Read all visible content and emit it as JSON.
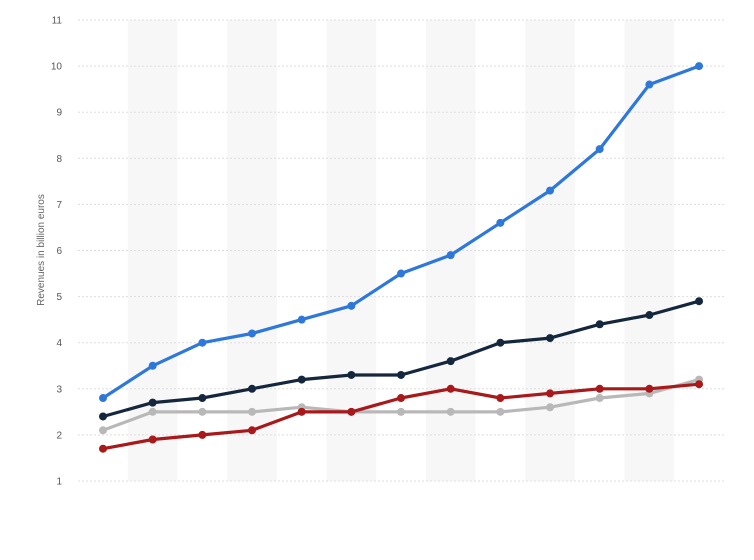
{
  "chart_data": {
    "type": "line",
    "title": "",
    "xlabel": "",
    "ylabel": "Revenues in billion euros",
    "ylim": [
      1,
      11
    ],
    "yticks": [
      1,
      2,
      3,
      4,
      5,
      6,
      7,
      8,
      9,
      10,
      11
    ],
    "grid": true,
    "legend": "none",
    "x_count": 13,
    "colors": {
      "band": "#f7f7f7",
      "grid": "#dddddd"
    },
    "series": [
      {
        "color": "#2e78d9",
        "values": [
          2.8,
          3.5,
          4.0,
          4.2,
          4.5,
          4.8,
          5.5,
          5.9,
          6.6,
          7.3,
          8.2,
          9.6,
          10.0
        ]
      },
      {
        "color": "#14273d",
        "values": [
          2.4,
          2.7,
          2.8,
          3.0,
          3.2,
          3.3,
          3.3,
          3.6,
          4.0,
          4.1,
          4.4,
          4.6,
          4.9
        ]
      },
      {
        "color": "#b8b8b8",
        "values": [
          2.1,
          2.5,
          2.5,
          2.5,
          2.6,
          2.5,
          2.5,
          2.5,
          2.5,
          2.6,
          2.8,
          2.9,
          3.2
        ]
      },
      {
        "color": "#a8191b",
        "values": [
          1.7,
          1.9,
          2.0,
          2.1,
          2.5,
          2.5,
          2.8,
          3.0,
          2.8,
          2.9,
          3.0,
          3.0,
          3.1
        ]
      }
    ]
  }
}
